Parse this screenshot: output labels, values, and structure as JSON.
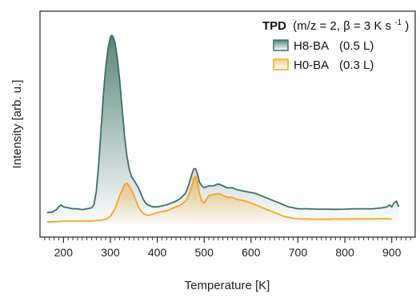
{
  "chart_data": {
    "type": "line",
    "xlabel": "Temperature [K]",
    "ylabel": "Intensity [arb. u.]",
    "xlim": [
      150,
      950
    ],
    "ylim": [
      0,
      1.0
    ],
    "x_ticks": [
      200,
      300,
      400,
      500,
      600,
      700,
      800,
      900
    ],
    "x_minor_step": 10,
    "yticks_shown": false,
    "grid": false,
    "fill_under": true,
    "legend": {
      "placement": "top-right",
      "title_bold": "TPD",
      "title_rest": "(m/z = 2, β = 3 K s",
      "title_sup": "-1",
      "title_end": ")"
    },
    "series": [
      {
        "name": "H8-BA",
        "label_extra": "(0.5 L)",
        "color": "#3b6f6a",
        "x": [
          165,
          175,
          185,
          190,
          195,
          200,
          210,
          220,
          230,
          240,
          250,
          260,
          265,
          270,
          275,
          280,
          285,
          290,
          295,
          300,
          303,
          306,
          310,
          315,
          320,
          325,
          330,
          335,
          340,
          345,
          350,
          355,
          360,
          365,
          370,
          375,
          380,
          385,
          390,
          400,
          410,
          420,
          430,
          440,
          450,
          460,
          465,
          470,
          475,
          478,
          482,
          486,
          490,
          495,
          500,
          505,
          510,
          520,
          530,
          540,
          550,
          560,
          570,
          580,
          590,
          600,
          610,
          620,
          630,
          640,
          650,
          660,
          670,
          680,
          690,
          700,
          720,
          740,
          760,
          780,
          800,
          820,
          840,
          860,
          880,
          890,
          895,
          900,
          905,
          910,
          915
        ],
        "y": [
          0.07,
          0.072,
          0.085,
          0.1,
          0.11,
          0.1,
          0.095,
          0.09,
          0.09,
          0.085,
          0.09,
          0.095,
          0.11,
          0.18,
          0.32,
          0.5,
          0.68,
          0.83,
          0.93,
          0.99,
          1.0,
          0.99,
          0.96,
          0.88,
          0.76,
          0.62,
          0.48,
          0.37,
          0.3,
          0.26,
          0.24,
          0.22,
          0.2,
          0.17,
          0.14,
          0.12,
          0.11,
          0.105,
          0.1,
          0.1,
          0.105,
          0.11,
          0.12,
          0.13,
          0.145,
          0.17,
          0.2,
          0.24,
          0.28,
          0.3,
          0.3,
          0.27,
          0.23,
          0.21,
          0.2,
          0.205,
          0.21,
          0.21,
          0.22,
          0.21,
          0.2,
          0.2,
          0.19,
          0.185,
          0.18,
          0.175,
          0.17,
          0.16,
          0.15,
          0.14,
          0.13,
          0.12,
          0.11,
          0.1,
          0.095,
          0.09,
          0.09,
          0.088,
          0.088,
          0.087,
          0.088,
          0.09,
          0.09,
          0.09,
          0.095,
          0.1,
          0.11,
          0.1,
          0.12,
          0.13,
          0.1
        ]
      },
      {
        "name": "H0-BA",
        "label_extra": "(0.3 L)",
        "color": "#f3a525",
        "x": [
          165,
          180,
          200,
          220,
          240,
          260,
          270,
          280,
          290,
          300,
          310,
          320,
          330,
          335,
          340,
          345,
          350,
          355,
          360,
          365,
          370,
          380,
          390,
          400,
          410,
          420,
          430,
          440,
          450,
          460,
          465,
          470,
          475,
          478,
          482,
          486,
          490,
          495,
          500,
          505,
          510,
          520,
          530,
          540,
          550,
          560,
          570,
          580,
          590,
          600,
          610,
          620,
          630,
          640,
          650,
          660,
          670,
          680,
          690,
          700,
          720,
          740,
          760,
          780,
          800,
          820,
          840,
          860,
          880,
          900
        ],
        "y": [
          0.02,
          0.022,
          0.025,
          0.025,
          0.025,
          0.025,
          0.028,
          0.03,
          0.035,
          0.05,
          0.09,
          0.16,
          0.215,
          0.225,
          0.21,
          0.19,
          0.16,
          0.13,
          0.1,
          0.08,
          0.065,
          0.055,
          0.06,
          0.07,
          0.075,
          0.08,
          0.09,
          0.1,
          0.11,
          0.13,
          0.15,
          0.18,
          0.22,
          0.25,
          0.26,
          0.23,
          0.17,
          0.13,
          0.12,
          0.14,
          0.16,
          0.165,
          0.17,
          0.16,
          0.15,
          0.15,
          0.14,
          0.135,
          0.13,
          0.12,
          0.11,
          0.1,
          0.09,
          0.08,
          0.07,
          0.06,
          0.05,
          0.045,
          0.04,
          0.038,
          0.036,
          0.035,
          0.035,
          0.036,
          0.036,
          0.037,
          0.037,
          0.037,
          0.038,
          0.036
        ]
      }
    ]
  }
}
